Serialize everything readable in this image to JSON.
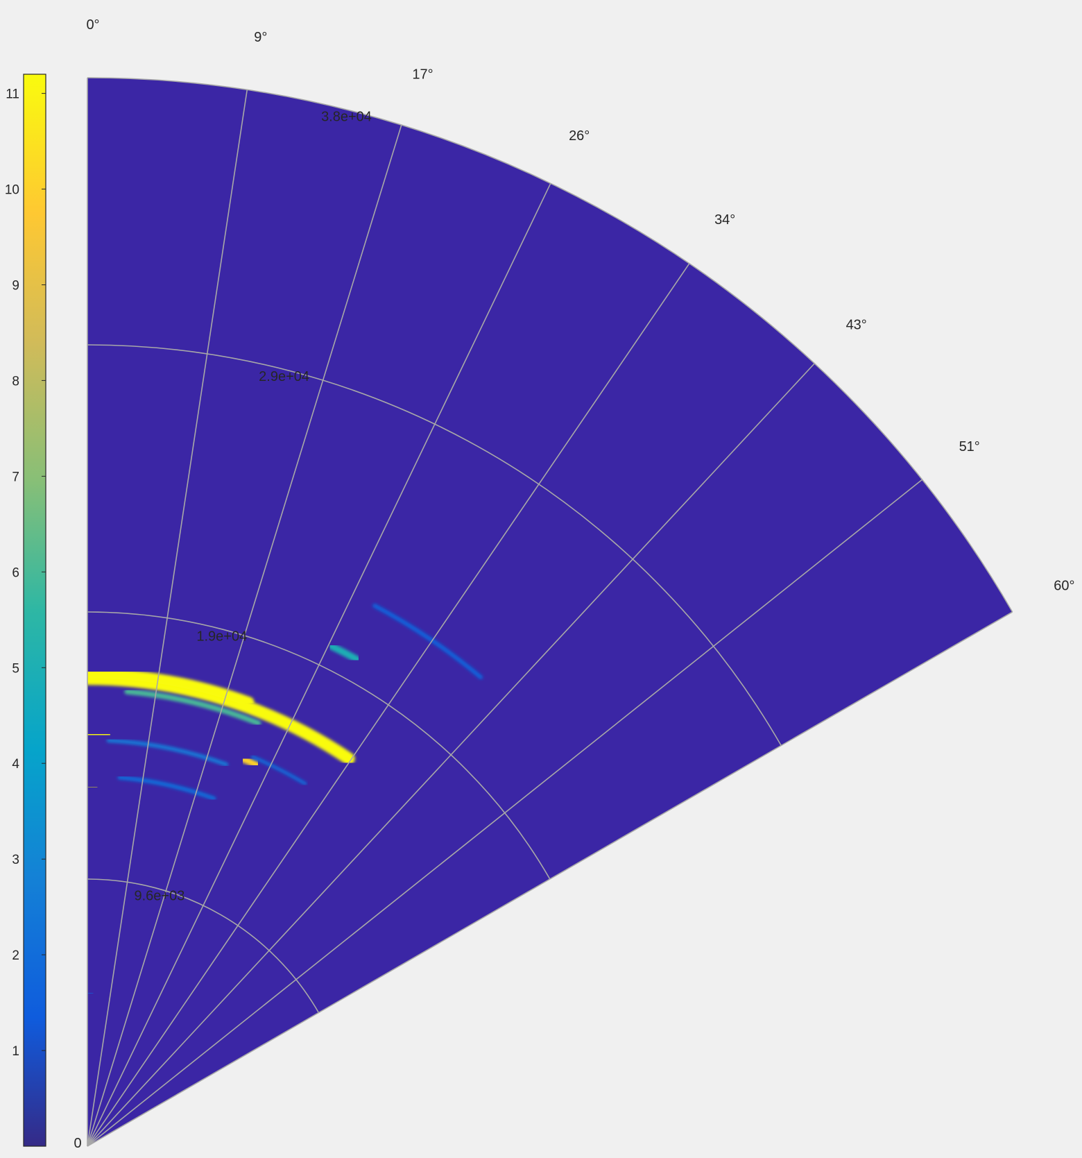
{
  "chart_data": {
    "type": "heatmap",
    "subtype": "polar-sector",
    "colormap": "parula",
    "background_color": "#f0f0f0",
    "sector_fill_color": "#3b26a5",
    "grid_color": "#a8a8a8",
    "theta_range_deg": [
      0,
      60
    ],
    "theta_ticks": [
      "0°",
      "9°",
      "17°",
      "26°",
      "34°",
      "43°",
      "51°",
      "60°"
    ],
    "theta_tick_values": [
      0,
      8.6,
      17.1,
      25.7,
      34.3,
      42.9,
      51.4,
      60
    ],
    "r_range": [
      0,
      38400
    ],
    "r_ticks": [
      "9.6e+03",
      "1.9e+04",
      "2.9e+04",
      "3.8e+04"
    ],
    "r_tick_values": [
      9600,
      19200,
      28800,
      38400
    ],
    "origin_label": "0",
    "colorbar": {
      "min": 0,
      "max": 11.2,
      "ticks": [
        "1",
        "2",
        "3",
        "4",
        "5",
        "6",
        "7",
        "8",
        "9",
        "10",
        "11"
      ],
      "tick_values": [
        1,
        2,
        3,
        4,
        5,
        6,
        7,
        8,
        9,
        10,
        11
      ]
    },
    "features": [
      {
        "r": 16800,
        "theta_start": 0,
        "theta_end": 34,
        "intensity": 11.2,
        "width": 450
      },
      {
        "r": 17000,
        "theta_start": 0,
        "theta_end": 20,
        "intensity": 11.2,
        "width": 350
      },
      {
        "r": 16400,
        "theta_start": 5,
        "theta_end": 22,
        "intensity": 6,
        "width": 200
      },
      {
        "r": 20000,
        "theta_start": 26,
        "theta_end": 29,
        "intensity": 5,
        "width": 250
      },
      {
        "r": 14800,
        "theta_start": 0,
        "theta_end": 3,
        "intensity": 11.2,
        "width": 220
      },
      {
        "r": 14600,
        "theta_start": 3,
        "theta_end": 20,
        "intensity": 2.5,
        "width": 150
      },
      {
        "r": 12900,
        "theta_start": 0,
        "theta_end": 1.5,
        "intensity": 11.2,
        "width": 180
      },
      {
        "r": 13300,
        "theta_start": 5,
        "theta_end": 20,
        "intensity": 2,
        "width": 150
      },
      {
        "r": 15000,
        "theta_start": 22,
        "theta_end": 24,
        "intensity": 10,
        "width": 250
      },
      {
        "r": 15200,
        "theta_start": 23,
        "theta_end": 31,
        "intensity": 2,
        "width": 120
      },
      {
        "r": 22000,
        "theta_start": 28,
        "theta_end": 40,
        "intensity": 1.6,
        "width": 150
      },
      {
        "r": 5500,
        "theta_start": 0,
        "theta_end": 2,
        "intensity": 1.5,
        "width": 120
      }
    ]
  }
}
